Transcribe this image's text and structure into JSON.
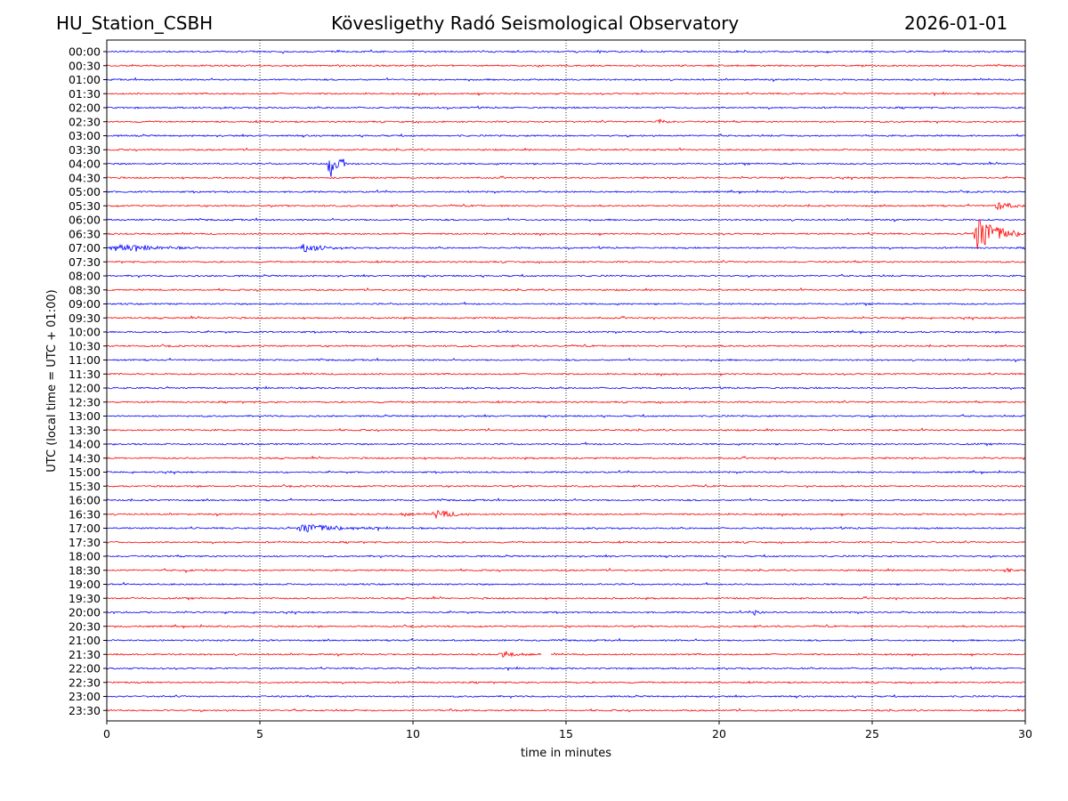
{
  "header": {
    "left": "HU_Station_CSBH",
    "center": "Kövesligethy Radó Seismological Observatory",
    "right": "2026-01-01"
  },
  "chart_data": {
    "type": "line",
    "title": "Kövesligethy Radó Seismological Observatory",
    "xlabel": "time in minutes",
    "ylabel": "UTC (local time = UTC + 01:00)",
    "xlim": [
      0,
      30
    ],
    "xticks": [
      0,
      5,
      10,
      15,
      20,
      25,
      30
    ],
    "grid": "vertical dotted at x ticks",
    "row_colors": [
      "#0000ff",
      "#ff0000"
    ],
    "rows": [
      "00:00",
      "00:30",
      "01:00",
      "01:30",
      "02:00",
      "02:30",
      "03:00",
      "03:30",
      "04:00",
      "04:30",
      "05:00",
      "05:30",
      "06:00",
      "06:30",
      "07:00",
      "07:30",
      "08:00",
      "08:30",
      "09:00",
      "09:30",
      "10:00",
      "10:30",
      "11:00",
      "11:30",
      "12:00",
      "12:30",
      "13:00",
      "13:30",
      "14:00",
      "14:30",
      "15:00",
      "15:30",
      "16:00",
      "16:30",
      "17:00",
      "17:30",
      "18:00",
      "18:30",
      "19:00",
      "19:30",
      "20:00",
      "20:30",
      "21:00",
      "21:30",
      "22:00",
      "22:30",
      "23:00",
      "23:30"
    ],
    "events": [
      {
        "row": "02:30",
        "start": 17.9,
        "duration": 0.7,
        "amplitude": 3
      },
      {
        "row": "04:00",
        "start": 7.2,
        "duration": 0.7,
        "amplitude": 24
      },
      {
        "row": "05:30",
        "start": 29.0,
        "duration": 1.0,
        "amplitude": 6
      },
      {
        "row": "06:30",
        "start": 28.25,
        "duration": 1.75,
        "amplitude": 22
      },
      {
        "row": "07:00",
        "start": 0.0,
        "duration": 3.0,
        "amplitude": 4
      },
      {
        "row": "07:00",
        "start": 6.3,
        "duration": 1.4,
        "amplitude": 5
      },
      {
        "row": "16:30",
        "start": 9.6,
        "duration": 0.6,
        "amplitude": 2
      },
      {
        "row": "16:30",
        "start": 10.6,
        "duration": 1.4,
        "amplitude": 5
      },
      {
        "row": "17:00",
        "start": 6.1,
        "duration": 3.0,
        "amplitude": 5
      },
      {
        "row": "18:30",
        "start": 2.5,
        "duration": 0.3,
        "amplitude": 3
      },
      {
        "row": "18:30",
        "start": 29.3,
        "duration": 0.4,
        "amplitude": 3
      },
      {
        "row": "20:00",
        "start": 21.1,
        "duration": 0.5,
        "amplitude": 3
      },
      {
        "row": "21:30",
        "start": 12.8,
        "duration": 1.3,
        "amplitude": 3
      },
      {
        "row": "23:30",
        "start": 11.2,
        "duration": 0.3,
        "amplitude": 3
      }
    ],
    "gaps": [
      {
        "row": "21:30",
        "start": 14.2,
        "end": 14.5
      }
    ]
  }
}
